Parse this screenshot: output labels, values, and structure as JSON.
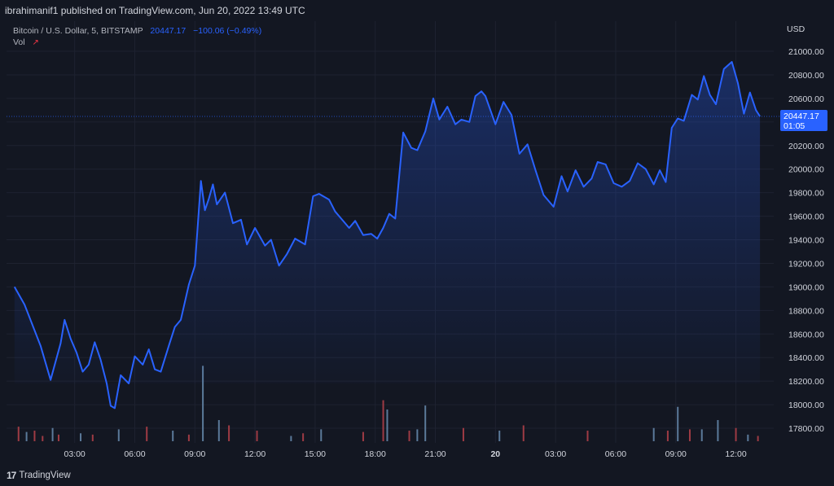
{
  "header": {
    "published_line": "ibrahimanif1 published on TradingView.com, Jun 20, 2022 13:49 UTC"
  },
  "legend": {
    "symbol": "Bitcoin / U.S. Dollar, 5, BITSTAMP",
    "last": "20447.17",
    "change": "−100.06 (−0.49%)",
    "vol_label": "Vol"
  },
  "price_axis": {
    "currency": "USD",
    "last_price_label": "20447.17",
    "countdown": "01:05"
  },
  "footer": {
    "logo": "17",
    "brand": "TradingView"
  },
  "colors": {
    "background": "#131722",
    "line": "#2962ff",
    "vol_up": "#5b7a9a",
    "vol_down": "#9e3b44",
    "text": "#d1d4dc"
  },
  "chart_data": {
    "type": "area",
    "title": "Bitcoin / U.S. Dollar, 5, BITSTAMP",
    "ylabel": "USD",
    "ylim": [
      17650,
      21100
    ],
    "y_ticks": [
      "21000.00",
      "20800.00",
      "20600.00",
      "20400.00",
      "20200.00",
      "20000.00",
      "19800.00",
      "19600.00",
      "19400.00",
      "19200.00",
      "19000.00",
      "18800.00",
      "18600.00",
      "18400.00",
      "18200.00",
      "18000.00",
      "17800.00"
    ],
    "y_tick_values": [
      21000,
      20800,
      20600,
      20400,
      20200,
      20000,
      19800,
      19600,
      19400,
      19200,
      19000,
      18800,
      18600,
      18400,
      18200,
      18000,
      17800
    ],
    "x_ticks": [
      "03:00",
      "06:00",
      "09:00",
      "12:00",
      "15:00",
      "18:00",
      "21:00",
      "20",
      "03:00",
      "06:00",
      "09:00",
      "12:00"
    ],
    "x_tick_hours": [
      3,
      6,
      9,
      12,
      15,
      18,
      21,
      24,
      27,
      30,
      33,
      36
    ],
    "x_unit": "hours from Jun 19, 2022 00:00 UTC",
    "series": [
      {
        "x": [
          0,
          0.5,
          1.3,
          1.8,
          2.3,
          2.5,
          2.8,
          3.1,
          3.4,
          3.7,
          4.0,
          4.3,
          4.6,
          4.8,
          5.0,
          5.3,
          5.7,
          6.0,
          6.4,
          6.7,
          7.0,
          7.3,
          7.7,
          8.0,
          8.3,
          8.7,
          9.0,
          9.3,
          9.5,
          9.7,
          9.9,
          10.1,
          10.5,
          10.9,
          11.3,
          11.6,
          12.0,
          12.5,
          12.8,
          13.2,
          13.6,
          14.0,
          14.5,
          14.9,
          15.2,
          15.7,
          16.0,
          16.3,
          16.7,
          17.0,
          17.4,
          17.8,
          18.1,
          18.4,
          18.7,
          19.0,
          19.4,
          19.8,
          20.1,
          20.5,
          20.9,
          21.2,
          21.6,
          22.0,
          22.3,
          22.7,
          23.0,
          23.3,
          23.5,
          24.0,
          24.4,
          24.8,
          25.2,
          25.6,
          26.0,
          26.4,
          26.9,
          27.3,
          27.6,
          28.0,
          28.4,
          28.8,
          29.1,
          29.5,
          29.9,
          30.3,
          30.7,
          31.1,
          31.5,
          31.9,
          32.2,
          32.5,
          32.8,
          33.1,
          33.4,
          33.8,
          34.1,
          34.4,
          34.7,
          35.0,
          35.4,
          35.8,
          36.1,
          36.4,
          36.7,
          37.0,
          37.2
        ],
        "y": [
          19000,
          18850,
          18500,
          18210,
          18520,
          18720,
          18560,
          18440,
          18280,
          18340,
          18530,
          18380,
          18180,
          17990,
          17970,
          18250,
          18180,
          18410,
          18340,
          18470,
          18300,
          18280,
          18500,
          18660,
          18720,
          19020,
          19180,
          19900,
          19650,
          19750,
          19870,
          19700,
          19800,
          19540,
          19570,
          19360,
          19500,
          19350,
          19400,
          19180,
          19280,
          19410,
          19360,
          19770,
          19790,
          19740,
          19640,
          19580,
          19500,
          19560,
          19440,
          19450,
          19410,
          19500,
          19620,
          19580,
          20310,
          20180,
          20160,
          20320,
          20600,
          20420,
          20530,
          20380,
          20420,
          20400,
          20620,
          20660,
          20620,
          20380,
          20570,
          20460,
          20130,
          20210,
          19990,
          19780,
          19680,
          19940,
          19810,
          19990,
          19850,
          19920,
          20060,
          20040,
          19880,
          19850,
          19900,
          20050,
          20000,
          19870,
          19990,
          19890,
          20350,
          20430,
          20410,
          20630,
          20590,
          20790,
          20630,
          20550,
          20850,
          20910,
          20730,
          20470,
          20650,
          20500,
          20447.17
        ]
      }
    ],
    "volume": {
      "ylim": [
        0,
        80
      ],
      "x": [
        0.2,
        0.6,
        1.0,
        1.4,
        1.9,
        2.2,
        3.3,
        3.9,
        5.2,
        6.6,
        7.9,
        8.7,
        9.4,
        10.2,
        10.7,
        12.1,
        13.8,
        14.4,
        15.3,
        17.4,
        18.4,
        18.6,
        19.7,
        20.1,
        20.5,
        22.4,
        24.2,
        25.4,
        28.6,
        31.9,
        32.6,
        33.1,
        33.7,
        34.3,
        35.1,
        36.0,
        36.6,
        37.1
      ],
      "values": [
        11,
        7,
        8,
        4,
        10,
        5,
        6,
        5,
        9,
        11,
        8,
        5,
        57,
        16,
        12,
        8,
        4,
        6,
        9,
        7,
        31,
        24,
        8,
        9,
        27,
        10,
        8,
        12,
        8,
        10,
        8,
        26,
        9,
        9,
        16,
        10,
        5,
        4
      ],
      "up": [
        false,
        true,
        false,
        false,
        true,
        false,
        true,
        false,
        true,
        false,
        true,
        false,
        true,
        true,
        false,
        false,
        true,
        false,
        true,
        false,
        false,
        true,
        false,
        true,
        true,
        false,
        true,
        false,
        false,
        true,
        false,
        true,
        false,
        true,
        true,
        false,
        true,
        false
      ]
    }
  }
}
